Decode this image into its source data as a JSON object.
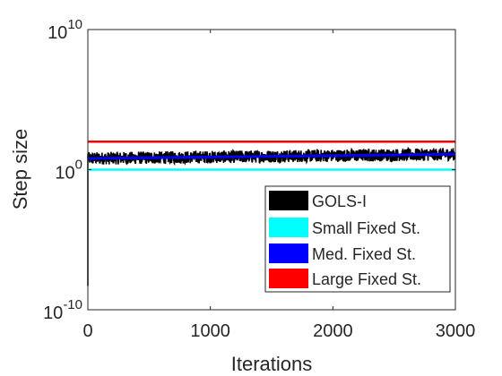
{
  "chart_data": {
    "type": "line",
    "xlabel": "Iterations",
    "ylabel": "Step size",
    "xlim": [
      0,
      3000
    ],
    "ylim_log10": [
      -10,
      10
    ],
    "y_scale": "log",
    "grid": false,
    "legend_position": "bottom-right",
    "x_ticks": [
      {
        "value": 0,
        "label": "0"
      },
      {
        "value": 1000,
        "label": "1000"
      },
      {
        "value": 2000,
        "label": "2000"
      },
      {
        "value": 3000,
        "label": "3000"
      }
    ],
    "y_ticks": [
      {
        "log10": -10,
        "base": "10",
        "exp": "-10"
      },
      {
        "log10": 0,
        "base": "10",
        "exp": "0"
      },
      {
        "log10": 10,
        "base": "10",
        "exp": "10"
      }
    ],
    "series": [
      {
        "name": "GOLS-I",
        "color": "#000000",
        "initial_log10": -8.3,
        "start_log10": 0.8,
        "end_log10": 1.1,
        "noise_log10": 0.45
      },
      {
        "name": "Small Fixed St.",
        "color": "#00ffff",
        "x": [
          0,
          3000
        ],
        "log10_values": [
          0,
          0
        ]
      },
      {
        "name": "Med. Fixed St.",
        "color": "#0000ff",
        "x": [
          0,
          3000
        ],
        "log10_values": [
          0.8,
          1.1
        ]
      },
      {
        "name": "Large Fixed St.",
        "color": "#ff0000",
        "x": [
          0,
          3000
        ],
        "log10_values": [
          2,
          2
        ]
      }
    ]
  }
}
